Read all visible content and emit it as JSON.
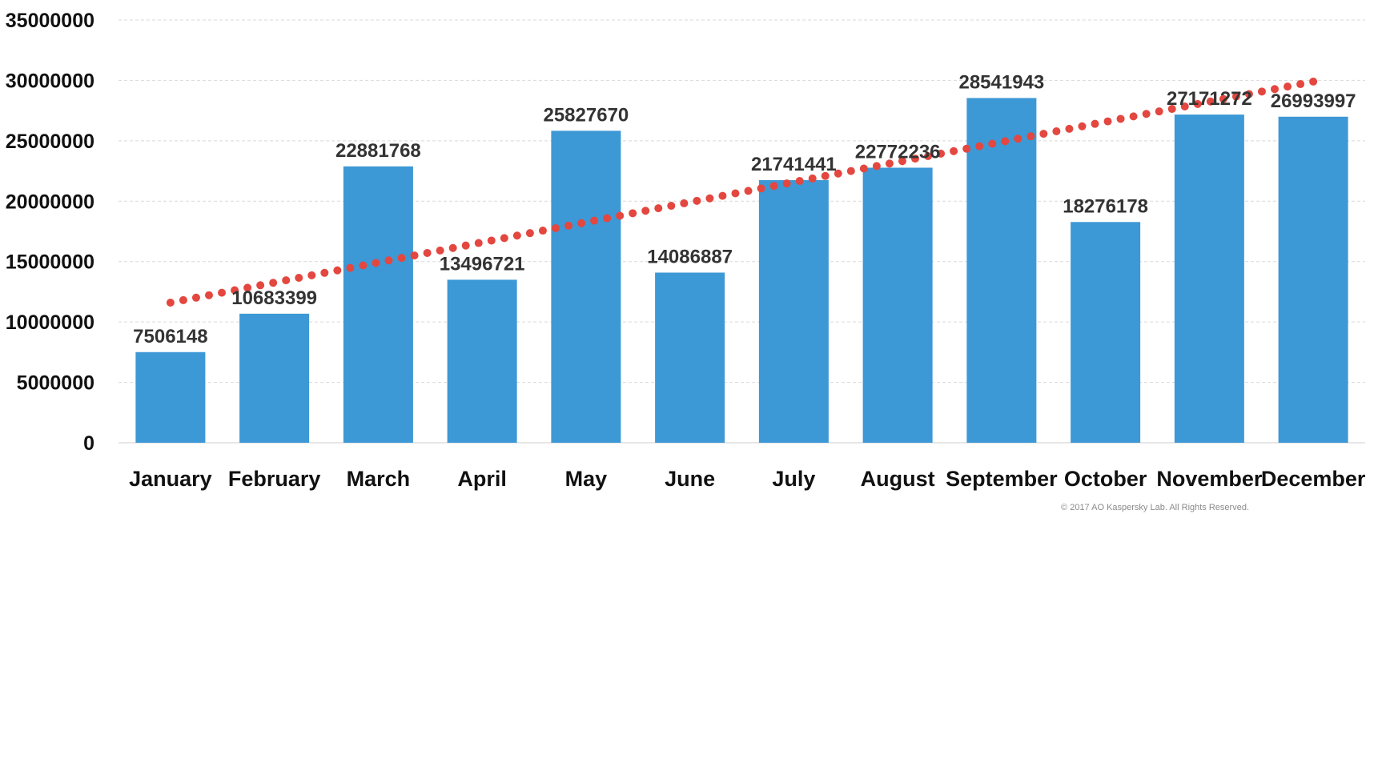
{
  "chart_data": {
    "type": "bar",
    "categories": [
      "January",
      "February",
      "March",
      "April",
      "May",
      "June",
      "July",
      "August",
      "September",
      "October",
      "November",
      "December"
    ],
    "values": [
      7506148,
      10683399,
      22881768,
      13496721,
      25827670,
      14086887,
      21741441,
      22772236,
      28541943,
      18276178,
      27171272,
      26993997
    ],
    "data_labels": [
      "7506148",
      "10683399",
      "22881768",
      "13496721",
      "25827670",
      "14086887",
      "21741441",
      "22772236",
      "28541943",
      "18276178",
      "27171272",
      "26993997"
    ],
    "ylim": [
      0,
      35000000
    ],
    "yticks": [
      0,
      5000000,
      10000000,
      15000000,
      20000000,
      25000000,
      30000000,
      35000000
    ],
    "ytick_labels": [
      "0",
      "5000000",
      "10000000",
      "15000000",
      "20000000",
      "25000000",
      "30000000",
      "35000000"
    ],
    "grid": true,
    "bar_color": "#3d98d6",
    "trendline": {
      "type": "linear",
      "style": "dotted",
      "color": "#e3473f",
      "start_value": 11600000,
      "end_value": 29900000
    },
    "title": "",
    "xlabel": "",
    "ylabel": ""
  },
  "footer": {
    "copyright": "© 2017 AO Kaspersky Lab. All Rights Reserved."
  }
}
